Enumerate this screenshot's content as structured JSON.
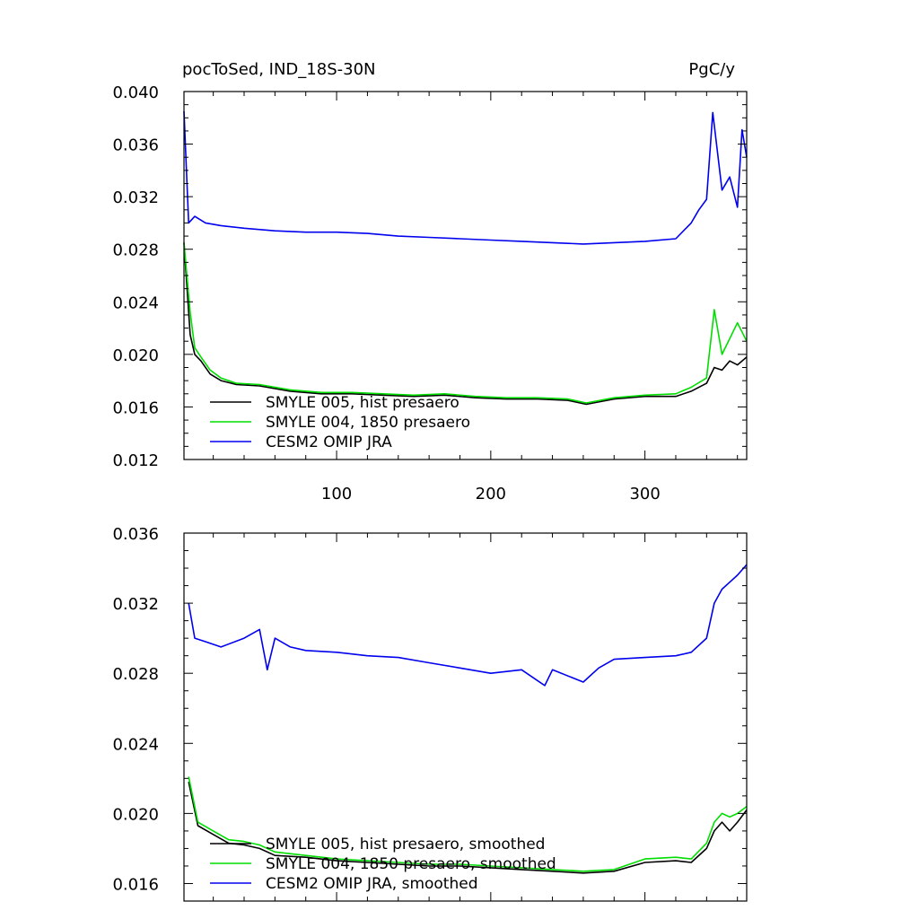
{
  "chart_data": [
    {
      "type": "line",
      "title": "pocToSed, IND_18S-30N",
      "units": "PgC/y",
      "xlim": [
        1,
        366
      ],
      "ylim": [
        0.012,
        0.04
      ],
      "x_ticks": [
        100,
        200,
        300
      ],
      "y_ticks": [
        "0.012",
        "0.016",
        "0.020",
        "0.024",
        "0.028",
        "0.032",
        "0.036",
        "0.040"
      ],
      "legend_position": "bottom-left",
      "grid": false,
      "series": [
        {
          "name": "SMYLE 005, hist presaero",
          "color": "#000000",
          "x": [
            1,
            5,
            8,
            12,
            18,
            25,
            35,
            50,
            70,
            90,
            110,
            130,
            150,
            170,
            190,
            210,
            230,
            250,
            262,
            280,
            300,
            320,
            330,
            340,
            345,
            350,
            355,
            360,
            366
          ],
          "y": [
            0.0285,
            0.0215,
            0.02,
            0.0195,
            0.0185,
            0.018,
            0.0177,
            0.0176,
            0.0172,
            0.017,
            0.017,
            0.0169,
            0.0168,
            0.0169,
            0.0167,
            0.0166,
            0.0166,
            0.0165,
            0.0162,
            0.0166,
            0.0168,
            0.0168,
            0.0172,
            0.0178,
            0.019,
            0.0188,
            0.0195,
            0.0192,
            0.0198
          ]
        },
        {
          "name": "SMYLE 004, 1850 presaero",
          "color": "#00dd00",
          "x": [
            1,
            5,
            8,
            12,
            18,
            25,
            35,
            50,
            70,
            90,
            110,
            130,
            150,
            170,
            190,
            210,
            230,
            250,
            262,
            280,
            300,
            320,
            330,
            340,
            345,
            350,
            355,
            360,
            366
          ],
          "y": [
            0.0285,
            0.0232,
            0.0205,
            0.0198,
            0.0188,
            0.0182,
            0.0178,
            0.0177,
            0.0173,
            0.0171,
            0.0171,
            0.017,
            0.0169,
            0.017,
            0.0168,
            0.0167,
            0.0167,
            0.0166,
            0.0163,
            0.0167,
            0.0169,
            0.017,
            0.0175,
            0.0182,
            0.0234,
            0.02,
            0.0212,
            0.0224,
            0.021
          ]
        },
        {
          "name": "CESM2 OMIP JRA",
          "color": "#0000ee",
          "x": [
            1,
            4,
            8,
            15,
            25,
            40,
            60,
            80,
            100,
            120,
            140,
            160,
            180,
            200,
            220,
            240,
            260,
            280,
            300,
            320,
            330,
            335,
            340,
            344,
            350,
            355,
            360,
            363,
            366
          ],
          "y": [
            0.0385,
            0.03,
            0.0305,
            0.03,
            0.0298,
            0.0296,
            0.0294,
            0.0293,
            0.0293,
            0.0292,
            0.029,
            0.0289,
            0.0288,
            0.0287,
            0.0286,
            0.0285,
            0.0284,
            0.0285,
            0.0286,
            0.0288,
            0.03,
            0.031,
            0.0318,
            0.0384,
            0.0325,
            0.0335,
            0.0312,
            0.0371,
            0.035
          ]
        }
      ]
    },
    {
      "type": "line",
      "xlim": [
        1,
        366
      ],
      "ylim": [
        0.015,
        0.036
      ],
      "x_ticks": [
        100,
        200,
        300
      ],
      "y_ticks": [
        "0.016",
        "0.020",
        "0.024",
        "0.028",
        "0.032",
        "0.036"
      ],
      "legend_position": "bottom-left",
      "grid": false,
      "series": [
        {
          "name": "SMYLE 005, hist presaero, smoothed",
          "color": "#000000",
          "x": [
            4,
            10,
            20,
            30,
            40,
            50,
            60,
            80,
            100,
            120,
            140,
            160,
            180,
            200,
            220,
            240,
            260,
            280,
            300,
            320,
            330,
            340,
            345,
            350,
            355,
            360,
            366
          ],
          "y": [
            0.0218,
            0.0193,
            0.0188,
            0.0183,
            0.0182,
            0.018,
            0.0176,
            0.0175,
            0.0173,
            0.0172,
            0.0171,
            0.017,
            0.017,
            0.0169,
            0.0168,
            0.0167,
            0.0166,
            0.0167,
            0.0172,
            0.0173,
            0.0172,
            0.018,
            0.019,
            0.0195,
            0.019,
            0.0195,
            0.0202
          ]
        },
        {
          "name": "SMYLE 004, 1850 presaero, smoothed",
          "color": "#00dd00",
          "x": [
            4,
            10,
            20,
            30,
            40,
            50,
            60,
            80,
            100,
            120,
            140,
            160,
            180,
            200,
            220,
            240,
            260,
            280,
            300,
            320,
            330,
            340,
            345,
            350,
            355,
            360,
            366
          ],
          "y": [
            0.0221,
            0.0195,
            0.019,
            0.0185,
            0.0184,
            0.0182,
            0.0178,
            0.0176,
            0.0174,
            0.0173,
            0.0172,
            0.0171,
            0.0171,
            0.017,
            0.0169,
            0.0168,
            0.0167,
            0.0168,
            0.0174,
            0.0175,
            0.0174,
            0.0183,
            0.0195,
            0.02,
            0.0198,
            0.02,
            0.0204
          ]
        },
        {
          "name": "CESM2 OMIP JRA, smoothed",
          "color": "#0000ee",
          "x": [
            4,
            8,
            15,
            25,
            40,
            50,
            55,
            60,
            70,
            80,
            100,
            120,
            140,
            160,
            180,
            200,
            220,
            235,
            240,
            260,
            270,
            280,
            300,
            320,
            330,
            340,
            345,
            350,
            355,
            360,
            366
          ],
          "y": [
            0.032,
            0.03,
            0.0298,
            0.0295,
            0.03,
            0.0305,
            0.0282,
            0.03,
            0.0295,
            0.0293,
            0.0292,
            0.029,
            0.0289,
            0.0286,
            0.0283,
            0.028,
            0.0282,
            0.0273,
            0.0282,
            0.0275,
            0.0283,
            0.0288,
            0.0289,
            0.029,
            0.0292,
            0.03,
            0.032,
            0.0328,
            0.0332,
            0.0336,
            0.0342
          ]
        }
      ]
    }
  ]
}
